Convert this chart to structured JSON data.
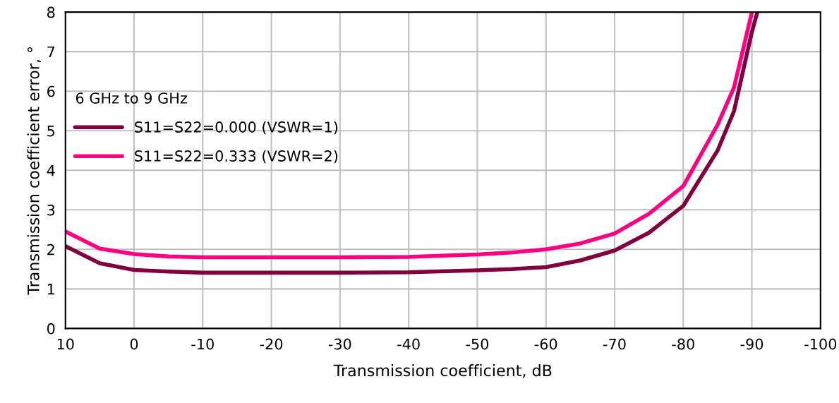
{
  "chart_data": {
    "type": "line",
    "xlabel": "Transmission coefficient, dB",
    "ylabel": "Transmission coefficient error, °",
    "legend_title": "6 GHz to 9 GHz",
    "legend": "top left",
    "grid": true,
    "marker": "none",
    "line_style": "solid",
    "xlim": [
      10,
      -100
    ],
    "xticks": [
      10,
      0,
      -10,
      -20,
      -30,
      -40,
      -50,
      -60,
      -70,
      -80,
      -90,
      -100
    ],
    "ylim": [
      0,
      8
    ],
    "yticks": [
      0,
      1,
      2,
      3,
      4,
      5,
      6,
      7,
      8
    ],
    "series": [
      {
        "name": "S11=S22=0.000 (VSWR=1)",
        "color": "#80003f",
        "x": [
          10,
          5,
          0,
          -5,
          -10,
          -20,
          -30,
          -40,
          -50,
          -55,
          -60,
          -65,
          -70,
          -75,
          -80,
          -85,
          -87.4,
          -90,
          -90.8
        ],
        "values": [
          2.08,
          1.65,
          1.48,
          1.44,
          1.41,
          1.41,
          1.41,
          1.42,
          1.47,
          1.5,
          1.55,
          1.72,
          1.97,
          2.42,
          3.1,
          4.5,
          5.5,
          7.5,
          8
        ]
      },
      {
        "name": "S11=S22=0.333 (VSWR=2)",
        "color": "#ff0080",
        "x": [
          10,
          5,
          0,
          -5,
          -10,
          -20,
          -30,
          -40,
          -50,
          -55,
          -60,
          -65,
          -70,
          -75,
          -80,
          -85,
          -87.4,
          -90
        ],
        "values": [
          2.45,
          2.02,
          1.88,
          1.82,
          1.8,
          1.8,
          1.8,
          1.81,
          1.87,
          1.92,
          2.0,
          2.15,
          2.4,
          2.9,
          3.6,
          5.15,
          6.1,
          8
        ]
      }
    ]
  }
}
